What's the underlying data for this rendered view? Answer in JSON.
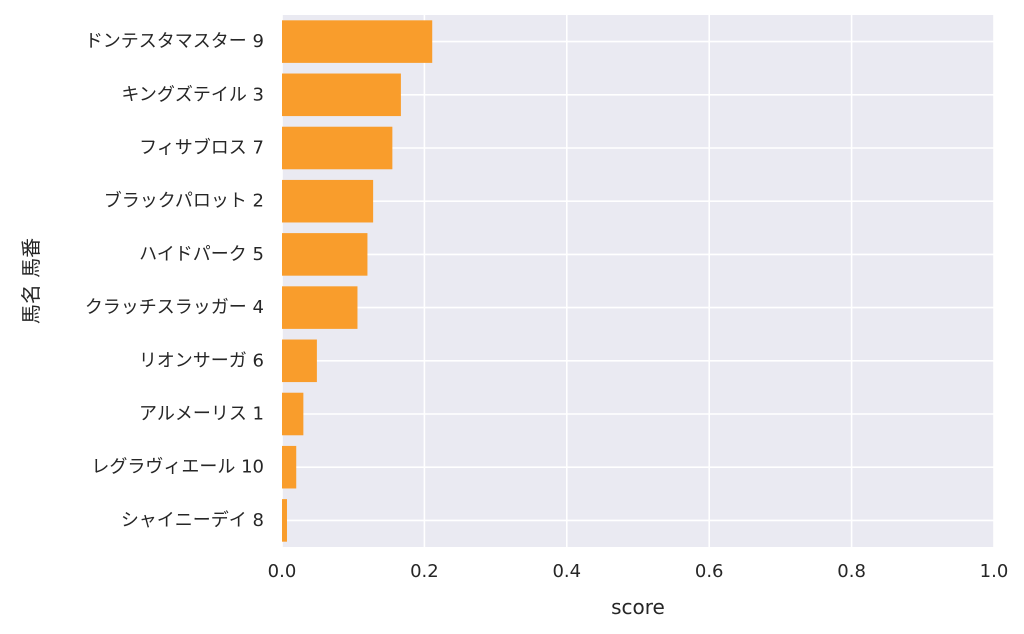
{
  "chart_data": {
    "type": "bar",
    "orientation": "horizontal",
    "title": "",
    "xlabel": "score",
    "ylabel": "馬名 馬番",
    "xlim": [
      0,
      1.0
    ],
    "xticks": [
      "0.0",
      "0.2",
      "0.4",
      "0.6",
      "0.8",
      "1.0"
    ],
    "grid": true,
    "categories": [
      "ドンテスタマスター 9",
      "キングズテイル 3",
      "フィサブロス 7",
      "ブラックパロット 2",
      "ハイドパーク 5",
      "クラッチスラッガー 4",
      "リオンサーガ 6",
      "アルメーリス 1",
      "レグラヴィエール 10",
      "シャイニーデイ 8"
    ],
    "values": [
      0.211,
      0.167,
      0.155,
      0.128,
      0.12,
      0.106,
      0.049,
      0.03,
      0.02,
      0.007
    ],
    "colors": {
      "bar": "#f99d2c",
      "background": "#eaeaf2",
      "grid": "#ffffff"
    }
  }
}
